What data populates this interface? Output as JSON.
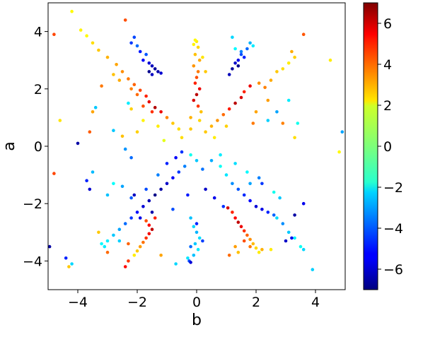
{
  "chart_data": {
    "type": "scatter",
    "title": "",
    "xlabel": "b",
    "ylabel": "a",
    "xlim": [
      -5,
      5
    ],
    "ylim": [
      -5,
      5
    ],
    "xticks": [
      -4,
      -2,
      0,
      2,
      4
    ],
    "yticks": [
      -4,
      -2,
      0,
      2,
      4
    ],
    "xtick_labels": [
      "−4",
      "−2",
      "0",
      "2",
      "4"
    ],
    "ytick_labels": [
      "−4",
      "−2",
      "0",
      "2",
      "4"
    ],
    "grid": false,
    "colorbar": {
      "colormap": "jet",
      "range": [
        -7,
        7
      ],
      "ticks": [
        -6,
        -4,
        -2,
        0,
        2,
        4,
        6
      ],
      "tick_labels": [
        "−6",
        "−4",
        "−2",
        "0",
        "2",
        "4",
        "6"
      ]
    },
    "points": [
      [
        -4.2,
        4.7,
        1.8
      ],
      [
        -4.8,
        3.9,
        4.3
      ],
      [
        -3.9,
        4.05,
        1.9
      ],
      [
        -3.7,
        3.85,
        1.8
      ],
      [
        -3.5,
        3.6,
        2.2
      ],
      [
        -3.3,
        3.35,
        2.5
      ],
      [
        -3.0,
        3.1,
        2.8
      ],
      [
        -2.7,
        2.85,
        3.0
      ],
      [
        -2.5,
        2.6,
        3.3
      ],
      [
        -2.3,
        2.35,
        3.6
      ],
      [
        -2.1,
        2.15,
        3.9
      ],
      [
        -1.9,
        1.95,
        4.3
      ],
      [
        -1.7,
        1.75,
        4.8
      ],
      [
        -1.6,
        1.55,
        5.6
      ],
      [
        -1.4,
        1.35,
        6.3
      ],
      [
        -1.2,
        1.2,
        5.5
      ],
      [
        -2.8,
        2.5,
        2.6
      ],
      [
        -2.6,
        2.3,
        2.9
      ],
      [
        -2.2,
        2.0,
        3.5
      ],
      [
        -2.0,
        1.8,
        3.8
      ],
      [
        -1.8,
        1.4,
        4.2
      ],
      [
        -1.5,
        1.2,
        4.6
      ],
      [
        -1.0,
        1.0,
        3.4
      ],
      [
        -0.8,
        0.8,
        2.5
      ],
      [
        -0.6,
        0.6,
        2.2
      ],
      [
        -1.3,
        0.7,
        2.0
      ],
      [
        -1.8,
        0.9,
        1.9
      ],
      [
        -2.2,
        1.3,
        2.4
      ],
      [
        -3.2,
        2.1,
        3.6
      ],
      [
        -3.5,
        1.2,
        3.0
      ],
      [
        -4.6,
        0.9,
        2.1
      ],
      [
        -3.6,
        0.5,
        4.0
      ],
      [
        -2.5,
        0.35,
        2.6
      ],
      [
        -2.0,
        0.5,
        2.4
      ],
      [
        -1.1,
        0.2,
        1.4
      ],
      [
        -0.5,
        0.3,
        2.2
      ],
      [
        -0.2,
        0.6,
        2.5
      ],
      [
        -2.4,
        4.4,
        4.2
      ],
      [
        -2.2,
        3.6,
        -4.5
      ],
      [
        -2.0,
        3.5,
        -3.8
      ],
      [
        -1.9,
        3.3,
        -4.9
      ],
      [
        -1.8,
        3.0,
        -5.3
      ],
      [
        -1.7,
        3.2,
        -4.1
      ],
      [
        -1.6,
        2.9,
        -5.8
      ],
      [
        -1.5,
        2.8,
        -6.2
      ],
      [
        -1.4,
        2.7,
        -6.6
      ],
      [
        -1.3,
        2.6,
        -6.4
      ],
      [
        -1.2,
        2.55,
        -5.9
      ],
      [
        -1.6,
        2.6,
        -6.8
      ],
      [
        -1.5,
        2.5,
        -6.1
      ],
      [
        -2.1,
        3.8,
        -4.3
      ],
      [
        0.0,
        3.65,
        2.0
      ],
      [
        -0.1,
        3.55,
        1.9
      ],
      [
        0.05,
        3.45,
        2.3
      ],
      [
        -0.05,
        3.2,
        2.6
      ],
      [
        0.1,
        3.0,
        2.9
      ],
      [
        -0.1,
        2.8,
        3.2
      ],
      [
        0.05,
        2.6,
        3.6
      ],
      [
        0.0,
        2.4,
        4.2
      ],
      [
        -0.05,
        2.2,
        4.8
      ],
      [
        0.1,
        2.0,
        5.5
      ],
      [
        0.0,
        1.8,
        6.2
      ],
      [
        -0.1,
        1.6,
        5.8
      ],
      [
        0.05,
        1.4,
        4.5
      ],
      [
        0.3,
        2.6,
        2.5
      ],
      [
        0.2,
        3.1,
        2.1
      ],
      [
        0.15,
        1.2,
        2.6
      ],
      [
        -0.2,
        1.0,
        2.8
      ],
      [
        0.1,
        0.9,
        2.3
      ],
      [
        -0.05,
        3.7,
        1.8
      ],
      [
        1.2,
        3.8,
        -2.3
      ],
      [
        1.3,
        3.4,
        -1.8
      ],
      [
        1.5,
        3.3,
        -3.5
      ],
      [
        1.6,
        3.1,
        -4.8
      ],
      [
        1.4,
        3.0,
        -5.5
      ],
      [
        1.3,
        2.9,
        -6.0
      ],
      [
        1.2,
        2.7,
        -6.6
      ],
      [
        1.1,
        2.5,
        -6.2
      ],
      [
        1.5,
        3.2,
        -4.2
      ],
      [
        1.8,
        3.6,
        -2.8
      ],
      [
        1.7,
        3.4,
        -3.8
      ],
      [
        1.9,
        3.5,
        -2.0
      ],
      [
        1.4,
        2.8,
        -6.8
      ],
      [
        1.8,
        2.1,
        5.5
      ],
      [
        1.6,
        1.9,
        4.8
      ],
      [
        1.5,
        1.7,
        5.8
      ],
      [
        1.3,
        1.5,
        6.2
      ],
      [
        1.1,
        1.3,
        4.9
      ],
      [
        0.9,
        1.1,
        3.8
      ],
      [
        0.7,
        0.9,
        3.2
      ],
      [
        0.5,
        0.7,
        2.8
      ],
      [
        0.3,
        0.5,
        2.5
      ],
      [
        2.1,
        2.2,
        3.3
      ],
      [
        2.3,
        2.05,
        3.5
      ],
      [
        2.5,
        2.3,
        2.9
      ],
      [
        2.7,
        2.6,
        2.5
      ],
      [
        2.9,
        2.7,
        2.2
      ],
      [
        3.1,
        2.9,
        2.0
      ],
      [
        3.3,
        3.1,
        2.4
      ],
      [
        3.6,
        3.9,
        4.1
      ],
      [
        3.2,
        3.3,
        2.9
      ],
      [
        2.4,
        1.6,
        3.1
      ],
      [
        2.0,
        1.2,
        3.0
      ],
      [
        1.0,
        0.7,
        2.4
      ],
      [
        0.6,
        0.3,
        2.0
      ],
      [
        1.9,
        0.8,
        3.6
      ],
      [
        2.9,
        0.8,
        3.5
      ],
      [
        3.3,
        0.3,
        2.2
      ],
      [
        4.5,
        3.0,
        2.0
      ],
      [
        4.9,
        0.5,
        -3.0
      ],
      [
        4.8,
        -0.2,
        1.8
      ],
      [
        3.4,
        0.8,
        -1.5
      ],
      [
        2.7,
        1.2,
        -3.0
      ],
      [
        2.4,
        0.9,
        -2.4
      ],
      [
        3.1,
        1.6,
        -2.0
      ],
      [
        -3.4,
        1.35,
        -2.5
      ],
      [
        -2.3,
        1.5,
        -2.0
      ],
      [
        -2.8,
        0.55,
        -2.5
      ],
      [
        -4.0,
        0.1,
        -6.5
      ],
      [
        -2.4,
        -0.1,
        -3.2
      ],
      [
        -2.2,
        -0.4,
        -3.8
      ],
      [
        -0.2,
        -0.3,
        -1.5
      ],
      [
        0.0,
        -0.5,
        -2.5
      ],
      [
        -0.4,
        -0.7,
        -3.5
      ],
      [
        -0.6,
        -0.9,
        -4.5
      ],
      [
        -0.8,
        -1.1,
        -5.3
      ],
      [
        -1.0,
        -1.3,
        -6.0
      ],
      [
        -1.2,
        -1.5,
        -6.5
      ],
      [
        -1.4,
        -1.7,
        -6.9
      ],
      [
        -1.6,
        -1.9,
        -6.3
      ],
      [
        -1.8,
        -2.1,
        -5.8
      ],
      [
        -2.0,
        -2.3,
        -5.1
      ],
      [
        -2.2,
        -2.5,
        -4.5
      ],
      [
        -2.4,
        -2.7,
        -3.8
      ],
      [
        -2.6,
        -2.9,
        -3.0
      ],
      [
        -2.8,
        -3.1,
        -2.5
      ],
      [
        -3.0,
        -3.3,
        -2.0
      ],
      [
        -3.2,
        -3.4,
        -1.8
      ],
      [
        -1.3,
        -1.0,
        -3.5
      ],
      [
        -1.0,
        -0.6,
        -4.8
      ],
      [
        -0.7,
        -0.4,
        -5.3
      ],
      [
        -0.5,
        -0.2,
        -4.6
      ],
      [
        -1.7,
        -1.5,
        -4.2
      ],
      [
        -2.5,
        -1.4,
        -3.0
      ],
      [
        -3.0,
        -1.7,
        -2.6
      ],
      [
        -3.7,
        -1.2,
        -4.8
      ],
      [
        -3.6,
        -1.5,
        -5.9
      ],
      [
        -3.5,
        -0.9,
        -2.7
      ],
      [
        -2.1,
        -1.7,
        -6.1
      ],
      [
        -1.9,
        -2.5,
        -5.6
      ],
      [
        -1.5,
        -2.3,
        -6.4
      ],
      [
        -0.3,
        -1.7,
        -4.9
      ],
      [
        -0.8,
        -2.2,
        -4.2
      ],
      [
        0.3,
        -1.5,
        -6.0
      ],
      [
        0.6,
        -1.8,
        -5.5
      ],
      [
        0.9,
        -2.1,
        -4.6
      ],
      [
        0.2,
        -0.8,
        -3.7
      ],
      [
        0.5,
        -0.5,
        -2.9
      ],
      [
        0.8,
        -0.7,
        -1.6
      ],
      [
        1.0,
        -1.0,
        -2.1
      ],
      [
        1.2,
        -1.3,
        -3.3
      ],
      [
        1.4,
        -1.5,
        -4.1
      ],
      [
        1.6,
        -1.7,
        -4.7
      ],
      [
        1.8,
        -1.9,
        -5.2
      ],
      [
        2.0,
        -2.1,
        -5.8
      ],
      [
        2.2,
        -2.2,
        -5.6
      ],
      [
        2.4,
        -2.3,
        -4.8
      ],
      [
        2.6,
        -2.4,
        -3.9
      ],
      [
        2.9,
        -2.7,
        -3.3
      ],
      [
        3.1,
        -3.0,
        -2.5
      ],
      [
        3.3,
        -3.2,
        -1.9
      ],
      [
        3.5,
        -3.5,
        -1.6
      ],
      [
        3.9,
        -4.3,
        -2.4
      ],
      [
        3.0,
        -3.3,
        -6.0
      ],
      [
        3.3,
        -2.4,
        -6.5
      ],
      [
        3.6,
        -2.0,
        -5.5
      ],
      [
        2.2,
        -1.3,
        -4.5
      ],
      [
        2.8,
        -1.8,
        -2.5
      ],
      [
        1.8,
        -1.3,
        -3.0
      ],
      [
        1.3,
        -0.6,
        -2.2
      ],
      [
        0.8,
        -0.3,
        -2.0
      ],
      [
        1.7,
        -0.9,
        -1.8
      ],
      [
        2.6,
        -1.6,
        -1.5
      ],
      [
        -1.7,
        -2.6,
        4.2
      ],
      [
        -1.6,
        -2.75,
        5.2
      ],
      [
        -1.5,
        -2.9,
        6.1
      ],
      [
        -1.6,
        -3.05,
        5.4
      ],
      [
        -1.7,
        -3.2,
        4.6
      ],
      [
        -1.8,
        -3.35,
        3.7
      ],
      [
        -1.9,
        -3.5,
        3.1
      ],
      [
        -2.0,
        -3.65,
        2.5
      ],
      [
        -2.1,
        -3.8,
        2.0
      ],
      [
        -2.3,
        -4.0,
        4.5
      ],
      [
        -2.4,
        -4.2,
        5.2
      ],
      [
        -2.3,
        -3.4,
        3.9
      ],
      [
        -1.4,
        -2.5,
        4.8
      ],
      [
        -0.2,
        -2.5,
        -2.6
      ],
      [
        -0.1,
        -2.8,
        -2.3
      ],
      [
        0.0,
        -3.0,
        -2.8
      ],
      [
        0.1,
        -3.2,
        -2.2
      ],
      [
        -0.05,
        -3.4,
        -2.5
      ],
      [
        0.05,
        -3.6,
        -2.0
      ],
      [
        -0.1,
        -3.8,
        -2.6
      ],
      [
        -0.3,
        -3.9,
        -2.1
      ],
      [
        -0.2,
        -3.5,
        -3.8
      ],
      [
        0.2,
        -3.3,
        -4.4
      ],
      [
        0.0,
        -2.7,
        -4.8
      ],
      [
        -0.25,
        -4.0,
        -4.2
      ],
      [
        1.3,
        -2.5,
        5.2
      ],
      [
        1.4,
        -2.65,
        6.1
      ],
      [
        1.5,
        -2.8,
        5.5
      ],
      [
        1.6,
        -2.95,
        4.6
      ],
      [
        1.7,
        -3.1,
        3.9
      ],
      [
        1.8,
        -3.25,
        3.3
      ],
      [
        1.9,
        -3.4,
        2.7
      ],
      [
        2.0,
        -3.55,
        2.3
      ],
      [
        2.1,
        -3.7,
        2.0
      ],
      [
        1.2,
        -2.3,
        4.8
      ],
      [
        1.05,
        -2.15,
        5.8
      ],
      [
        1.6,
        -3.3,
        4.2
      ],
      [
        1.3,
        -3.5,
        3.1
      ],
      [
        1.4,
        -3.7,
        2.6
      ],
      [
        1.1,
        -3.8,
        3.8
      ],
      [
        2.2,
        -3.6,
        2.8
      ],
      [
        -4.4,
        -3.9,
        -4.8
      ],
      [
        -4.3,
        -4.2,
        2.5
      ],
      [
        -4.2,
        -4.1,
        -2.3
      ],
      [
        -4.95,
        -3.5,
        -6.5
      ],
      [
        -4.8,
        -0.95,
        4.3
      ],
      [
        -3.0,
        -3.7,
        3.8
      ],
      [
        -3.3,
        -3.0,
        2.5
      ],
      [
        -3.1,
        -3.5,
        -2.0
      ],
      [
        -2.6,
        -3.3,
        -2.4
      ],
      [
        -2.8,
        -1.3,
        -1.7
      ],
      [
        -2.2,
        -1.8,
        -4.0
      ],
      [
        -1.2,
        -3.8,
        3.0
      ],
      [
        -0.7,
        -4.1,
        -2.3
      ],
      [
        -0.2,
        -4.05,
        -5.8
      ],
      [
        2.5,
        -3.6,
        2.0
      ],
      [
        3.2,
        -3.2,
        -5.5
      ],
      [
        3.6,
        -3.6,
        -2.3
      ],
      [
        2.7,
        -2.5,
        -2.2
      ],
      [
        1.8,
        -3.5,
        3.6
      ],
      [
        2.1,
        -1.1,
        -3.5
      ]
    ]
  }
}
